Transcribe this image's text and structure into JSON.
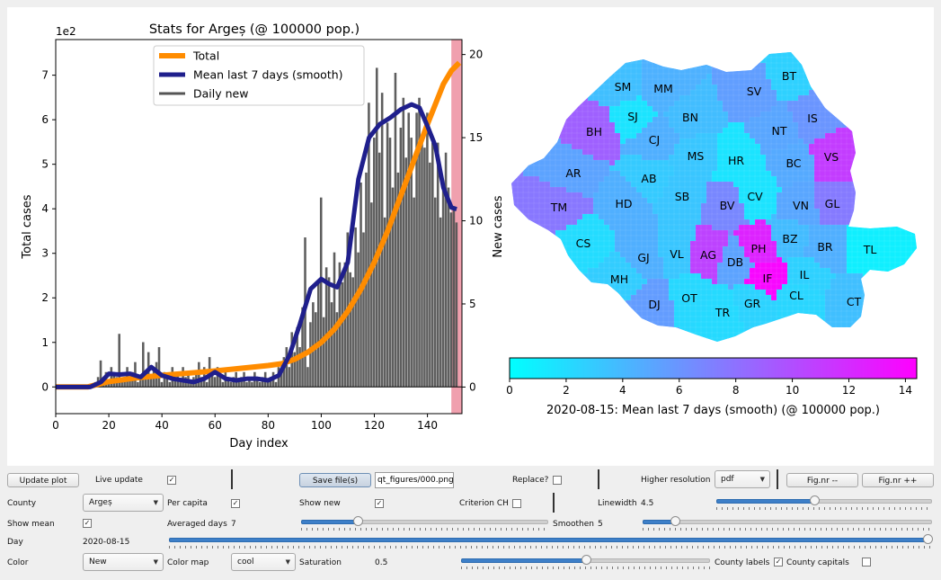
{
  "plot": {
    "title": "Stats for Argeș (@ 100000 pop.)",
    "xlabel": "Day index",
    "ylabel_left": "Total cases",
    "ylabel_right": "New cases",
    "y_offset_text": "1e2",
    "legend": [
      "Total",
      "Mean last 7 days (smooth)",
      "Daily new"
    ]
  },
  "chart_data": {
    "type": "bar",
    "title": "Stats for Argeș (@ 100000 pop.)",
    "xlabel": "Day index",
    "ylabel": "Total cases",
    "ylabel_right": "New cases",
    "xlim": [
      0,
      153
    ],
    "ylim_left": [
      -0.6,
      7.8
    ],
    "ylim_right": [
      -1.6,
      20.9
    ],
    "xticks": [
      0,
      20,
      40,
      60,
      80,
      100,
      120,
      140
    ],
    "yticks_left": [
      0,
      1,
      2,
      3,
      4,
      5,
      6,
      7
    ],
    "yticks_right": [
      0,
      5,
      10,
      15,
      20
    ],
    "legend_position": "upper center",
    "highlight_span": [
      149,
      153
    ],
    "series": [
      {
        "name": "Total",
        "axis": "left",
        "color": "#ff8c00",
        "x": [
          0,
          12,
          20,
          30,
          40,
          50,
          60,
          70,
          80,
          85,
          90,
          95,
          100,
          105,
          110,
          115,
          120,
          125,
          130,
          135,
          140,
          143,
          146,
          149,
          152
        ],
        "y": [
          0,
          0,
          0.12,
          0.2,
          0.26,
          0.31,
          0.36,
          0.42,
          0.48,
          0.52,
          0.62,
          0.78,
          1.0,
          1.3,
          1.7,
          2.2,
          2.8,
          3.5,
          4.3,
          5.1,
          5.9,
          6.35,
          6.8,
          7.1,
          7.28
        ]
      },
      {
        "name": "Mean last 7 days (smooth)",
        "axis": "right",
        "color": "#1f1f8c",
        "x": [
          0,
          13,
          17,
          20,
          24,
          28,
          32,
          36,
          40,
          44,
          48,
          52,
          56,
          60,
          64,
          68,
          72,
          76,
          80,
          84,
          88,
          92,
          96,
          100,
          103,
          106,
          110,
          114,
          118,
          122,
          126,
          130,
          134,
          137,
          140,
          143,
          146,
          149,
          151
        ],
        "y": [
          0,
          0,
          0.3,
          0.8,
          0.75,
          0.8,
          0.6,
          1.2,
          0.7,
          0.5,
          0.4,
          0.3,
          0.5,
          0.9,
          0.5,
          0.4,
          0.5,
          0.5,
          0.4,
          0.7,
          1.9,
          3.8,
          5.9,
          6.5,
          6.2,
          6.0,
          7.5,
          12.5,
          15.0,
          15.8,
          16.2,
          16.7,
          17.0,
          16.8,
          15.7,
          14.5,
          12.0,
          10.8,
          10.7
        ]
      },
      {
        "name": "Daily new",
        "axis": "right",
        "color": "#555555",
        "x": [
          15,
          16,
          17,
          18,
          19,
          20,
          21,
          22,
          23,
          24,
          25,
          26,
          27,
          28,
          29,
          30,
          31,
          32,
          33,
          34,
          35,
          36,
          37,
          38,
          39,
          40,
          41,
          42,
          43,
          44,
          45,
          46,
          47,
          48,
          49,
          50,
          51,
          52,
          53,
          54,
          55,
          56,
          57,
          58,
          59,
          60,
          61,
          62,
          63,
          64,
          65,
          66,
          67,
          68,
          69,
          70,
          71,
          72,
          73,
          74,
          75,
          76,
          77,
          78,
          79,
          80,
          81,
          82,
          83,
          84,
          85,
          86,
          87,
          88,
          89,
          90,
          91,
          92,
          93,
          94,
          95,
          96,
          97,
          98,
          99,
          100,
          101,
          102,
          103,
          104,
          105,
          106,
          107,
          108,
          109,
          110,
          111,
          112,
          113,
          114,
          115,
          116,
          117,
          118,
          119,
          120,
          121,
          122,
          123,
          124,
          125,
          126,
          127,
          128,
          129,
          130,
          131,
          132,
          133,
          134,
          135,
          136,
          137,
          138,
          139,
          140,
          141,
          142,
          143,
          144,
          145,
          146,
          147,
          148,
          149,
          150,
          151
        ],
        "y": [
          0.3,
          0.6,
          1.6,
          0.6,
          0.9,
          0.3,
          1.2,
          0.9,
          0.6,
          3.2,
          0.3,
          0.6,
          1.2,
          0.6,
          0.9,
          1.5,
          0.3,
          0.6,
          2.7,
          0.9,
          2.1,
          0.6,
          1.2,
          1.5,
          2.4,
          0.3,
          0.9,
          0.6,
          0.3,
          1.2,
          0.6,
          0.9,
          0.3,
          1.2,
          0.6,
          0.9,
          0.3,
          0.6,
          0.9,
          1.5,
          0.6,
          1.2,
          0.3,
          1.8,
          0.9,
          0.6,
          1.2,
          0.6,
          0.3,
          0.9,
          0.6,
          0.3,
          0.6,
          0.9,
          0.3,
          0.6,
          0.9,
          0.3,
          0.6,
          0.3,
          0.9,
          0.6,
          0.3,
          0.6,
          0.9,
          0.3,
          0.6,
          0.9,
          0.3,
          1.2,
          0.9,
          1.8,
          2.4,
          1.2,
          3.3,
          2.1,
          3.6,
          2.4,
          4.8,
          9.0,
          1.2,
          3.9,
          5.1,
          4.5,
          6.3,
          11.4,
          4.2,
          7.2,
          6.6,
          5.1,
          8.1,
          4.5,
          7.5,
          6.3,
          7.5,
          9.3,
          6.9,
          6.6,
          9.6,
          8.1,
          12.3,
          9.3,
          12.9,
          17.1,
          11.1,
          15.0,
          19.2,
          14.1,
          17.7,
          10.2,
          15.9,
          15.0,
          12.0,
          18.9,
          12.9,
          15.6,
          17.4,
          13.8,
          16.5,
          15.0,
          11.4,
          16.5,
          17.4,
          15.0,
          14.4,
          16.5,
          13.5,
          14.7,
          11.4,
          14.7,
          10.2,
          12.3,
          14.1,
          12.0,
          10.5,
          10.8,
          9.9
        ]
      }
    ]
  },
  "map": {
    "xlabel": "2020-08-15: Mean last 7 days (smooth)  (@ 100000 pop.)",
    "colorbar_ticks": [
      "0",
      "2",
      "4",
      "6",
      "8",
      "10",
      "12",
      "14"
    ],
    "colorbar_range": [
      0,
      14.4
    ],
    "colormap": [
      "#00ffff",
      "#ff00ff"
    ],
    "counties": [
      {
        "code": "SM",
        "value": 3.6
      },
      {
        "code": "MM",
        "value": 4.4
      },
      {
        "code": "BT",
        "value": 2.6
      },
      {
        "code": "SV",
        "value": 5.5
      },
      {
        "code": "SJ",
        "value": 1.5
      },
      {
        "code": "BH",
        "value": 9.0
      },
      {
        "code": "BN",
        "value": 3.7
      },
      {
        "code": "IS",
        "value": 6.0
      },
      {
        "code": "CJ",
        "value": 4.5
      },
      {
        "code": "NT",
        "value": 5.0
      },
      {
        "code": "MS",
        "value": 3.2
      },
      {
        "code": "HR",
        "value": 1.5
      },
      {
        "code": "BC",
        "value": 4.8
      },
      {
        "code": "VS",
        "value": 11.0
      },
      {
        "code": "AR",
        "value": 5.2
      },
      {
        "code": "AB",
        "value": 3.0
      },
      {
        "code": "TM",
        "value": 7.7
      },
      {
        "code": "HD",
        "value": 4.5
      },
      {
        "code": "SB",
        "value": 3.3
      },
      {
        "code": "BV",
        "value": 6.8
      },
      {
        "code": "CV",
        "value": 1.6
      },
      {
        "code": "VN",
        "value": 5.0
      },
      {
        "code": "GL",
        "value": 7.5
      },
      {
        "code": "CS",
        "value": 2.0
      },
      {
        "code": "GJ",
        "value": 4.5
      },
      {
        "code": "VL",
        "value": 3.2
      },
      {
        "code": "AG",
        "value": 10.7
      },
      {
        "code": "PH",
        "value": 12.5
      },
      {
        "code": "BZ",
        "value": 3.8
      },
      {
        "code": "BR",
        "value": 4.5
      },
      {
        "code": "TL",
        "value": 0.9
      },
      {
        "code": "DB",
        "value": 5.2
      },
      {
        "code": "MH",
        "value": 2.8
      },
      {
        "code": "IF",
        "value": 14.0
      },
      {
        "code": "IL",
        "value": 2.6
      },
      {
        "code": "DJ",
        "value": 5.6
      },
      {
        "code": "OT",
        "value": 2.2
      },
      {
        "code": "GR",
        "value": 2.5
      },
      {
        "code": "CL",
        "value": 2.3
      },
      {
        "code": "TR",
        "value": 2.1
      },
      {
        "code": "CT",
        "value": 3.6
      }
    ]
  },
  "controls": {
    "update_plot": "Update plot",
    "live_update": "Live update",
    "live_update_checked": "✓",
    "save_files": "Save file(s)",
    "filename": "qt_figures/000.png",
    "replace": "Replace?",
    "replace_checked": "",
    "higher_resolution": "Higher resolution",
    "format_value": "pdf",
    "fignr_minus": "Fig.nr --",
    "fignr_plus": "Fig.nr ++",
    "county_label": "County",
    "county_value": "Argeș",
    "per_capita": "Per capita",
    "per_capita_checked": "✓",
    "show_new": "Show new",
    "show_new_checked": "✓",
    "criterion_ch": "Criterion CH",
    "criterion_ch_checked": "",
    "linewidth_label": "Linewidth",
    "linewidth_value": "4.5",
    "linewidth_level": 0.45,
    "show_mean": "Show mean",
    "show_mean_checked": "✓",
    "averaged_days_label": "Averaged days",
    "averaged_days_value": "7",
    "averaged_days_level": 0.22,
    "smoothen_label": "Smoothen",
    "smoothen_value": "5",
    "smoothen_level": 0.1,
    "day_label": "Day",
    "day_value": "2020-08-15",
    "day_level": 1.0,
    "color_label": "Color",
    "color_value": "New",
    "colormap_label": "Color map",
    "colormap_value": "cool",
    "saturation_label": "Saturation",
    "saturation_value": "0.5",
    "saturation_level": 0.5,
    "county_labels": "County labels",
    "county_labels_checked": "✓",
    "county_capitals": "County capitals",
    "county_capitals_checked": ""
  }
}
